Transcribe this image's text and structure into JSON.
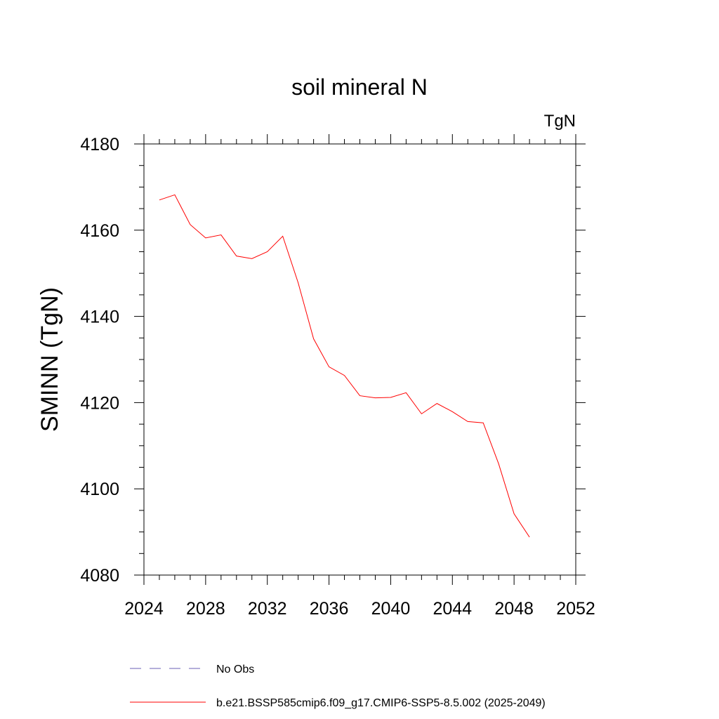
{
  "chart_data": {
    "type": "line",
    "title": "soil mineral N",
    "units_label": "TgN",
    "ylabel": "SMINN  (TgN)",
    "xlabel": "",
    "xlim": [
      2024,
      2052
    ],
    "ylim": [
      4080,
      4180
    ],
    "x_ticks": [
      2024,
      2028,
      2032,
      2036,
      2040,
      2044,
      2048,
      2052
    ],
    "y_ticks": [
      4080,
      4100,
      4120,
      4140,
      4160,
      4180
    ],
    "x_minor_step": 1,
    "y_minor_step": 5,
    "grid": false,
    "legend_position": "bottom",
    "legend": [
      {
        "label": "No Obs",
        "color": "#6b5fb5",
        "dash": "dashed"
      },
      {
        "label": "b.e21.BSSP585cmip6.f09_g17.CMIP6-SSP5-8.5.002 (2025-2049)",
        "color": "#ff0000",
        "dash": "solid"
      }
    ],
    "series": [
      {
        "name": "b.e21.BSSP585cmip6.f09_g17.CMIP6-SSP5-8.5.002 (2025-2049)",
        "color": "#ff0000",
        "x": [
          2025,
          2026,
          2027,
          2028,
          2029,
          2030,
          2031,
          2032,
          2033,
          2034,
          2035,
          2036,
          2037,
          2038,
          2039,
          2040,
          2041,
          2042,
          2043,
          2044,
          2045,
          2046,
          2047,
          2048,
          2049
        ],
        "y": [
          4167.0,
          4168.2,
          4161.3,
          4158.2,
          4158.9,
          4154.0,
          4153.4,
          4155.0,
          4158.6,
          4147.8,
          4134.8,
          4128.3,
          4126.3,
          4121.6,
          4121.1,
          4121.2,
          4122.3,
          4117.4,
          4119.8,
          4117.9,
          4115.6,
          4115.3,
          4105.8,
          4094.2,
          4088.8
        ]
      }
    ]
  }
}
